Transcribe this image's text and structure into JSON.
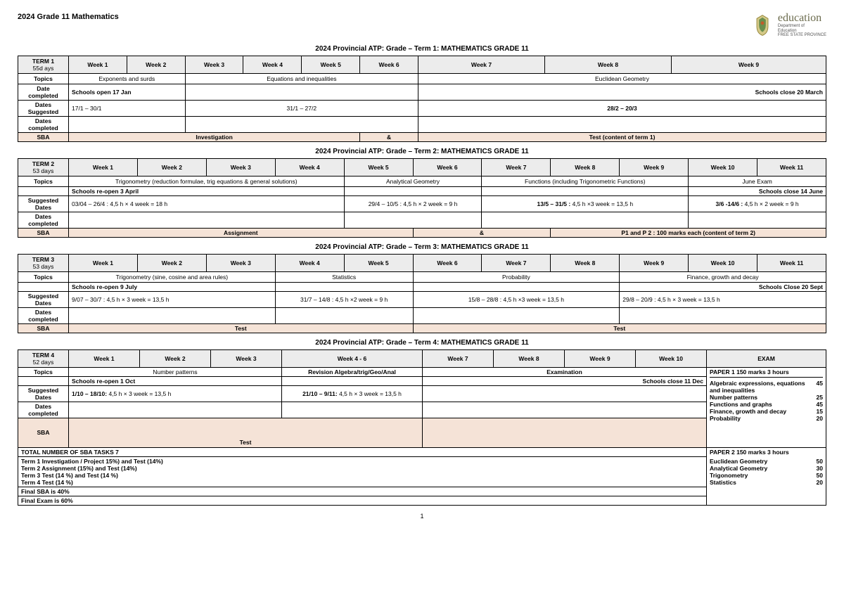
{
  "doc_title": "2024 Grade 11 Mathematics",
  "logo": {
    "text": "education",
    "sub1": "Department of",
    "sub2": "Education",
    "sub3": "FREE STATE PROVINCE"
  },
  "page_number": "1",
  "term1": {
    "heading": "2024 Provincial ATP: Grade – Term 1: MATHEMATICS GRADE 11",
    "label": "TERM 1",
    "days": "55d ays",
    "weeks": [
      "Week 1",
      "Week 2",
      "Week 3",
      "Week 4",
      "Week 5",
      "Week 6",
      "Week 7",
      "Week 8",
      "Week 9"
    ],
    "topics_label": "Topics",
    "topic1": "Exponents and surds",
    "topic2": "Equations and inequalities",
    "topic3": "Euclidean Geometry",
    "date_completed_label": "Date completed",
    "open": "Schools open 17 Jan",
    "close": "Schools close 20 March",
    "dates_suggested_label": "Dates Suggested",
    "ds1": "17/1 – 30/1",
    "ds2": "31/1 – 27/2",
    "ds3": "28/2 – 20/3",
    "dates_completed_label": "Dates completed",
    "sba_label": "SBA",
    "sba1": "Investigation",
    "sba_amp": "&",
    "sba2": "Test (content of term 1)"
  },
  "term2": {
    "heading": "2024 Provincial ATP: Grade – Term 2: MATHEMATICS GRADE 11",
    "label": "TERM 2",
    "days": "53 days",
    "weeks": [
      "Week 1",
      "Week 2",
      "Week 3",
      "Week 4",
      "Week 5",
      "Week 6",
      "Week 7",
      "Week 8",
      "Week 9",
      "Week 10",
      "Week 11"
    ],
    "topics_label": "Topics",
    "topic1": "Trigonometry (reduction formulae, trig equations & general solutions)",
    "topic2": "Analytical Geometry",
    "topic3": "Functions (including Trigonometric Functions)",
    "topic4": "June Exam",
    "open": "Schools re-open 3 April",
    "close": "Schools close 14 June",
    "suggested_dates_label": "Suggested Dates",
    "sd1": "03/04 – 26/4 : 4,5 h × 4 week = 18 h",
    "sd2": "29/4 – 10/5 : 4,5 h × 2 week = 9 h",
    "sd3_bold": "13/5 – 31/5 :",
    "sd3_rest": " 4,5 h ×3 week = 13,5 h",
    "sd4_bold": "3/6 -14/6 :",
    "sd4_rest": " 4,5 h × 2 week = 9 h",
    "dates_completed_label": "Dates completed",
    "sba_label": "SBA",
    "sba1": "Assignment",
    "sba_amp": "&",
    "sba2": "P1 and P 2 : 100 marks each (content of term 2)"
  },
  "term3": {
    "heading": "2024 Provincial ATP: Grade – Term 3: MATHEMATICS GRADE 11",
    "label": "TERM 3",
    "days": "53 days",
    "weeks": [
      "Week 1",
      "Week 2",
      "Week 3",
      "Week 4",
      "Week 5",
      "Week 6",
      "Week 7",
      "Week 8",
      "Week 9",
      "Week 10",
      "Week 11"
    ],
    "topics_label": "Topics",
    "topic1": "Trigonometry (sine, cosine and area rules)",
    "topic2": "Statistics",
    "topic3": "Probability",
    "topic4": "Finance, growth and decay",
    "open": "Schools re-open 9 July",
    "close": "Schools Close 20 Sept",
    "suggested_dates_label": "Suggested Dates",
    "sd1": "9/07 – 30/7 : 4,5 h × 3 week = 13,5 h",
    "sd2": "31/7 – 14/8 : 4,5 h ×2 week = 9 h",
    "sd3": "15/8 – 28/8 : 4,5 h ×3 week = 13,5 h",
    "sd4": "29/8 – 20/9 : 4,5 h × 3 week = 13,5 h",
    "dates_completed_label": "Dates completed",
    "sba_label": "SBA",
    "sba1": "Test",
    "sba2": "Test"
  },
  "term4": {
    "heading": "2024 Provincial ATP: Grade – Term 4: MATHEMATICS GRADE 11",
    "label": "TERM 4",
    "days": "52 days",
    "weeks": [
      "Week 1",
      "Week 2",
      "Week 3",
      "Week 4 - 6",
      "Week 7",
      "Week 8",
      "Week 9",
      "Week 10"
    ],
    "exam_header": "EXAM",
    "topics_label": "Topics",
    "topic1": "Number patterns",
    "topic2": "Revision Algebra/trig/Geo/Anal",
    "topic3": "Examination",
    "open": "Schools re-open 1 Oct",
    "close": "Schools close 11 Dec",
    "suggested_dates_label": "Suggested Dates",
    "sd1_bold": "1/10 – 18/10:",
    "sd1_rest": " 4,5 h × 3 week = 13,5 h",
    "sd2_bold": "21/10 – 9/11:",
    "sd2_rest": " 4,5 h × 3 week = 13,5 h",
    "dates_completed_label": "Dates completed",
    "sba_label": "SBA",
    "sba1": "Test",
    "paper1_title": "PAPER 1   150 marks   3 hours",
    "p1_items": [
      {
        "name": "Algebraic expressions, equations and inequalities",
        "val": "45"
      },
      {
        "name": "Number patterns",
        "val": "25"
      },
      {
        "name": "Functions and graphs",
        "val": "45"
      },
      {
        "name": "Finance, growth and decay",
        "val": "15"
      },
      {
        "name": "Probability",
        "val": "20"
      }
    ],
    "paper2_title": "PAPER 2   150 marks   3 hours",
    "p2_items": [
      {
        "name": "Euclidean Geometry",
        "val": "50"
      },
      {
        "name": "Analytical Geometry",
        "val": "30"
      },
      {
        "name": "Trigonometry",
        "val": "50"
      },
      {
        "name": "Statistics",
        "val": "20"
      }
    ],
    "total_sba": "TOTAL NUMBER OF SBA TASKS  7",
    "summary": [
      "Term 1   Investigation / Project 15%) and Test (14%)",
      "Term 2   Assignment (15%) and Test (14%)",
      "Term 3  Test (14 %) and Test (14 %)",
      "Term 4  Test (14 %)"
    ],
    "final_sba": "Final SBA is 40%",
    "final_exam": "Final Exam is  60%"
  }
}
